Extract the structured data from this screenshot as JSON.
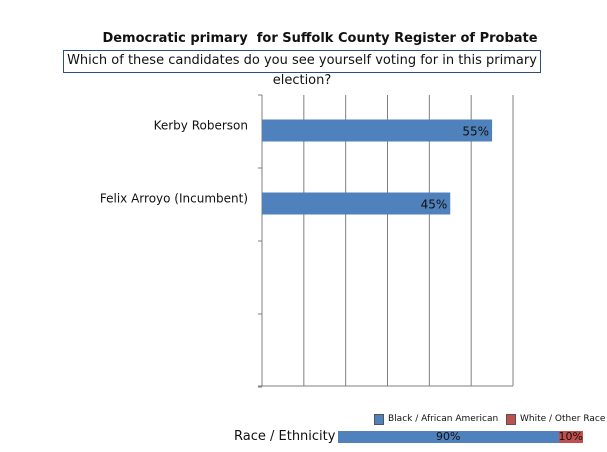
{
  "title": "Democratic primary  for Suffolk County Register of Probate",
  "question": "Which of these candidates do you see yourself voting for in this primary election?",
  "chart_data": {
    "type": "bar",
    "orientation": "horizontal",
    "categories": [
      "Kerby Roberson",
      "Felix Arroyo (Incumbent)"
    ],
    "values": [
      55,
      45
    ],
    "value_labels": [
      "55%",
      "45%"
    ],
    "xlim": [
      0,
      60
    ],
    "grid": true,
    "bar_color": "#4f81bd"
  },
  "race_legend": [
    {
      "label": "Black / African American",
      "color": "#4f81bd"
    },
    {
      "label": "White / Other Race",
      "color": "#c0504d"
    }
  ],
  "race_breakdown": {
    "label": "Race / Ethnicity",
    "segments": [
      {
        "label": "90%",
        "value": 90,
        "color": "#4f81bd"
      },
      {
        "label": "10%",
        "value": 10,
        "color": "#c0504d"
      }
    ]
  }
}
